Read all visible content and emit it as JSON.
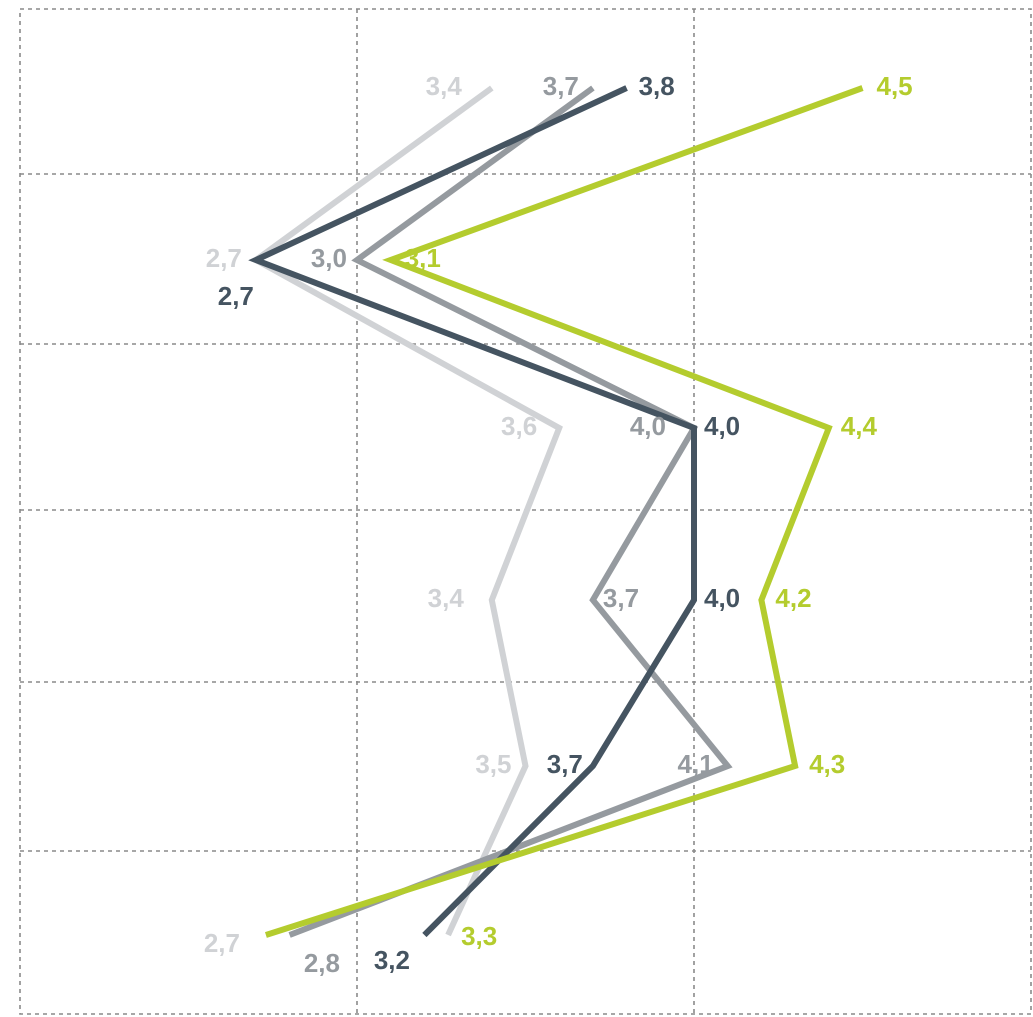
{
  "chart_data": {
    "type": "line",
    "orientation": "horizontal-values",
    "xlim": [
      2.0,
      5.0
    ],
    "grid": true,
    "legend": "none",
    "rows": 6,
    "series": [
      {
        "color": "#d0d2d5",
        "values": [
          3.4,
          2.7,
          3.6,
          3.4,
          3.5,
          2.7
        ],
        "labels": [
          "3,4",
          "2,7",
          "3,6",
          "3,4",
          "3,5",
          "2,7"
        ],
        "end_value": 3.3
      },
      {
        "color": "#959a9f",
        "values": [
          3.7,
          3.0,
          4.0,
          3.7,
          4.1,
          2.8
        ],
        "labels": [
          "3,7",
          "3,0",
          "4,0",
          "3,7",
          "4,1",
          "2,8"
        ]
      },
      {
        "color": "#455461",
        "values": [
          3.8,
          2.7,
          4.0,
          4.0,
          3.7,
          3.2
        ],
        "labels": [
          "3,8",
          "2,7",
          "4,0",
          "4,0",
          "3,7",
          "3,2"
        ]
      },
      {
        "color": "#b4cc2e",
        "values": [
          4.5,
          3.1,
          4.4,
          4.2,
          4.3,
          3.3
        ],
        "labels": [
          "4,5",
          "3,1",
          "4,4",
          "4,2",
          "4,3",
          "3,3"
        ],
        "start_value": 2.7
      }
    ]
  }
}
